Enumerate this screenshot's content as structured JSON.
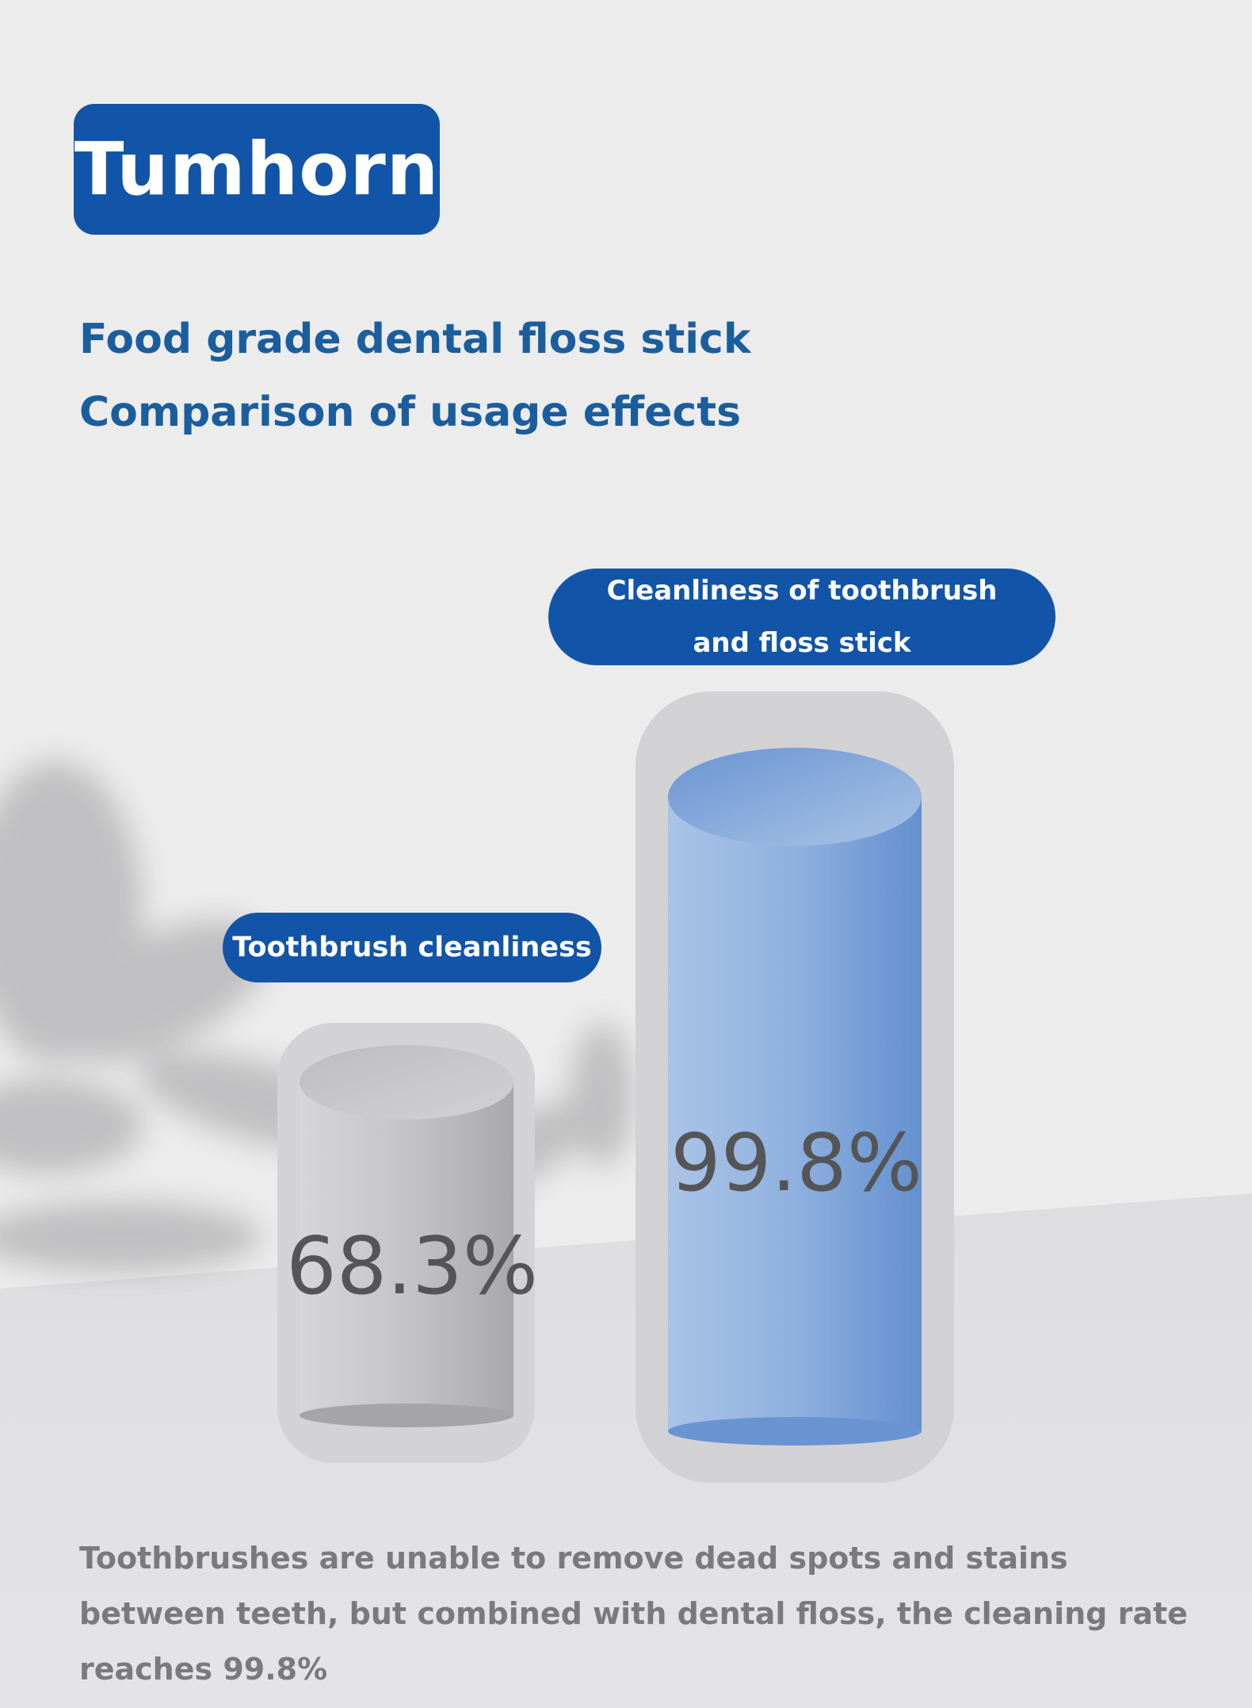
{
  "brand": {
    "name": "Tumhorn"
  },
  "heading": {
    "line1": "Food grade dental floss stick",
    "line2": "Comparison of usage effects"
  },
  "bars": [
    {
      "label": "Toothbrush cleanliness",
      "value_text": "68.3%",
      "value": 68.3,
      "color": "#c4c4c6"
    },
    {
      "label_line1": "Cleanliness of toothbrush",
      "label_line2": "and floss stick",
      "value_text": "99.8%",
      "value": 99.8,
      "color": "#7fa5dc"
    }
  ],
  "note": "Toothbrushes are unable to remove dead spots and stains between teeth, but combined with dental floss, the cleaning rate reaches 99.8%",
  "colors": {
    "accent": "#1255a8",
    "heading": "#1a5e9e",
    "background": "#ececed"
  }
}
